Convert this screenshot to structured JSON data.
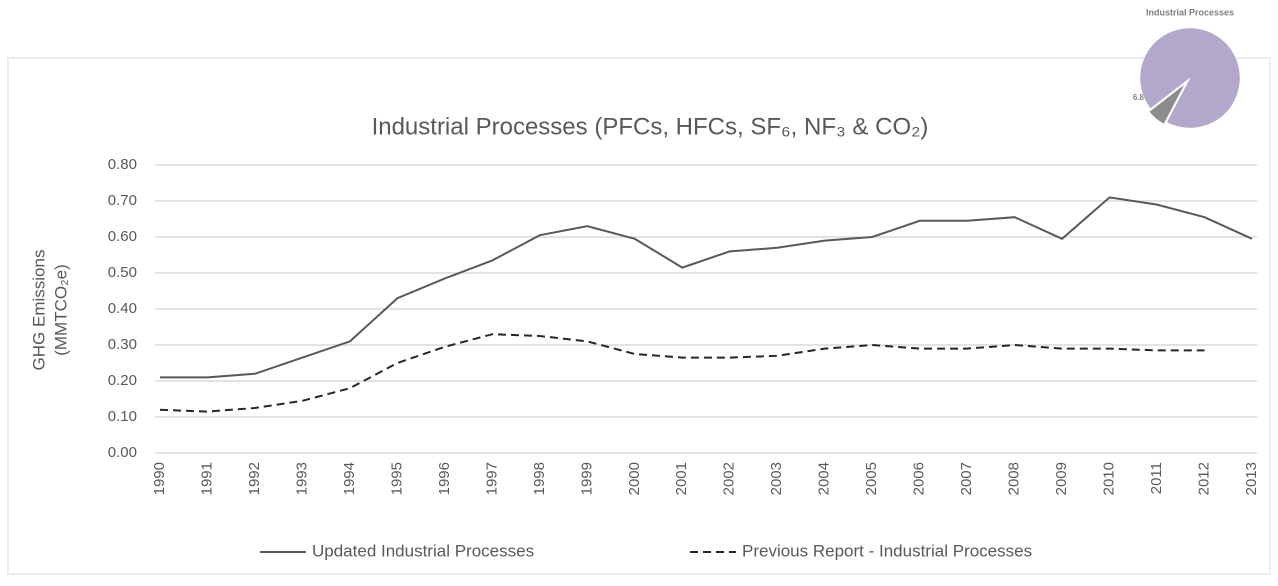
{
  "chart_data": [
    {
      "type": "line",
      "title": "Industrial Processes (PFCs, HFCs, SF₆, NF₃ & CO₂)",
      "ylabel": [
        "GHG Emissions",
        "(MMTCO₂e)"
      ],
      "categories": [
        "1990",
        "1991",
        "1992",
        "1993",
        "1994",
        "1995",
        "1996",
        "1997",
        "1998",
        "1999",
        "2000",
        "2001",
        "2002",
        "2003",
        "2004",
        "2005",
        "2006",
        "2007",
        "2008",
        "2009",
        "2010",
        "2011",
        "2012",
        "2013"
      ],
      "series": [
        {
          "name": "Updated Industrial Processes",
          "color": "#595959",
          "dash": false,
          "values": [
            0.21,
            0.21,
            0.22,
            0.265,
            0.31,
            0.43,
            0.485,
            0.535,
            0.605,
            0.63,
            0.595,
            0.515,
            0.56,
            0.57,
            0.59,
            0.6,
            0.645,
            0.645,
            0.655,
            0.595,
            0.71,
            0.69,
            0.655,
            0.595
          ]
        },
        {
          "name": "Previous Report - Industrial Processes",
          "color": "#262626",
          "dash": true,
          "values": [
            0.12,
            0.115,
            0.125,
            0.145,
            0.18,
            0.25,
            0.295,
            0.33,
            0.325,
            0.31,
            0.275,
            0.265,
            0.265,
            0.27,
            0.29,
            0.3,
            0.29,
            0.29,
            0.3,
            0.29,
            0.29,
            0.285,
            0.285,
            null
          ]
        }
      ],
      "ylim": [
        0,
        0.8
      ],
      "yticks": [
        {
          "value": 0,
          "label": "0.00"
        },
        {
          "value": 0.1,
          "label": "0.10"
        },
        {
          "value": 0.2,
          "label": "0.20"
        },
        {
          "value": 0.3,
          "label": "0.30"
        },
        {
          "value": 0.4,
          "label": "0.40"
        },
        {
          "value": 0.5,
          "label": "0.50"
        },
        {
          "value": 0.6,
          "label": "0.60"
        },
        {
          "value": 0.7,
          "label": "0.70"
        },
        {
          "value": 0.8,
          "label": "0.80"
        }
      ],
      "grid": true,
      "legend": "bottom"
    },
    {
      "type": "pie",
      "title": "Industrial Processes",
      "values": [
        6.8,
        93.2
      ],
      "value_labels": [
        "6.8%",
        null
      ],
      "colors": [
        "#8c8c8c",
        "#b3a8cc"
      ]
    }
  ]
}
